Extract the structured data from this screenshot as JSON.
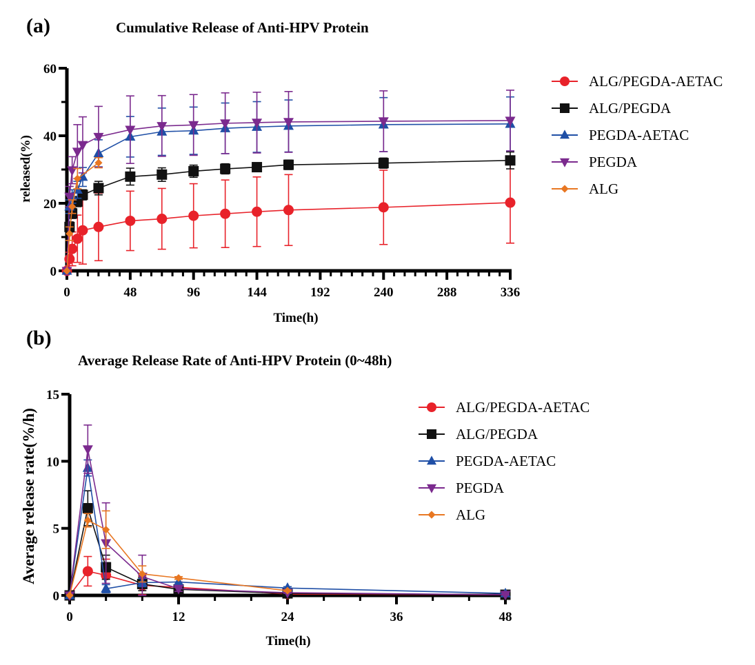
{
  "chart_data": [
    {
      "panel": "(a)",
      "type": "line",
      "title": "Cumulative Release of Anti-HPV Protein",
      "xlabel": "Time(h)",
      "ylabel": "released(%)",
      "xlim": [
        0,
        336
      ],
      "ylim": [
        0,
        60
      ],
      "xticks": [
        0,
        48,
        96,
        144,
        192,
        240,
        288,
        336
      ],
      "yticks": [
        0,
        20,
        40,
        60
      ],
      "x_minor_step": 8,
      "y_minor_step": 10,
      "grid": false,
      "legend_position": "right",
      "series": [
        {
          "name": "ALG/PEGDA-AETAC",
          "color": "#e8222a",
          "marker": "circle",
          "x": [
            0,
            2,
            4,
            8,
            12,
            24,
            48,
            72,
            96,
            120,
            144,
            168,
            240,
            336
          ],
          "values": [
            0,
            3.5,
            6.5,
            9.5,
            12,
            13,
            14.8,
            15.4,
            16.3,
            16.9,
            17.5,
            18,
            18.8,
            20.2
          ],
          "error": [
            0,
            2,
            5,
            7,
            10,
            10,
            8.8,
            9,
            9.5,
            10,
            10.3,
            10.5,
            11,
            12
          ]
        },
        {
          "name": "ALG/PEGDA",
          "color": "#111111",
          "marker": "square",
          "x": [
            2,
            4,
            8,
            12,
            24,
            48,
            72,
            96,
            120,
            144,
            168,
            240,
            336
          ],
          "values": [
            13,
            17,
            20.5,
            22.5,
            24.5,
            27.9,
            28.5,
            29.5,
            30.2,
            30.7,
            31.4,
            31.9,
            32.7
          ],
          "error": [
            1.5,
            1.5,
            1.5,
            1.5,
            2,
            2.5,
            2,
            1.8,
            1.5,
            1.3,
            1.4,
            1.5,
            2.5
          ]
        },
        {
          "name": "PEGDA-AETAC",
          "color": "#1f4fa6",
          "marker": "triangle-up",
          "x": [
            0,
            2,
            4,
            8,
            12,
            24,
            48,
            72,
            96,
            120,
            144,
            168,
            240,
            336
          ],
          "values": [
            0,
            19,
            22,
            24,
            27.8,
            34.8,
            39.7,
            41.2,
            41.5,
            42.2,
            42.6,
            42.9,
            43.3,
            43.5
          ],
          "error": [
            0,
            2,
            2,
            2.5,
            2.8,
            4,
            6,
            7,
            7,
            7.5,
            7.5,
            7.7,
            8,
            8
          ]
        },
        {
          "name": "PEGDA",
          "color": "#7b2a8e",
          "marker": "triangle-down",
          "x": [
            0,
            2,
            4,
            8,
            12,
            24,
            48,
            72,
            96,
            120,
            144,
            168,
            240,
            336
          ],
          "values": [
            0,
            22,
            29.8,
            35.3,
            37.3,
            39.7,
            41.8,
            42.9,
            43.2,
            43.7,
            43.9,
            44.1,
            44.3,
            44.5
          ],
          "error": [
            0,
            3,
            4,
            8,
            8.3,
            9,
            10,
            9,
            9,
            9,
            9,
            9,
            9,
            9
          ]
        },
        {
          "name": "ALG",
          "color": "#e87722",
          "marker": "diamond",
          "x": [
            0,
            2,
            4,
            8,
            24
          ],
          "values": [
            0,
            11,
            19,
            27.3,
            32
          ],
          "error": [
            0,
            2,
            2,
            3,
            1.5
          ]
        }
      ]
    },
    {
      "panel": "(b)",
      "type": "line",
      "title": "Average Release Rate of Anti-HPV Protein (0~48h)",
      "xlabel": "Time(h)",
      "ylabel": "Average release rate(%/h)",
      "xlim": [
        0,
        48
      ],
      "ylim": [
        0,
        15
      ],
      "xticks": [
        0,
        12,
        24,
        36,
        48
      ],
      "yticks": [
        0,
        5,
        10,
        15
      ],
      "x_minor_step": 4,
      "grid": false,
      "legend_position": "right",
      "series": [
        {
          "name": "ALG/PEGDA-AETAC",
          "color": "#e8222a",
          "marker": "circle",
          "x": [
            0,
            2,
            4,
            8,
            12,
            24,
            48
          ],
          "values": [
            0,
            1.8,
            1.5,
            0.75,
            0.6,
            0.1,
            0.05
          ],
          "error": [
            0,
            1.1,
            1.2,
            0.7,
            0.4,
            0.05,
            0.02
          ]
        },
        {
          "name": "ALG/PEGDA",
          "color": "#111111",
          "marker": "square",
          "x": [
            0,
            2,
            4,
            8,
            12,
            24,
            48
          ],
          "values": [
            0,
            6.5,
            2.1,
            0.85,
            0.45,
            0.15,
            0.05
          ],
          "error": [
            0,
            1.3,
            0.9,
            0.5,
            0.2,
            0.05,
            0.02
          ]
        },
        {
          "name": "PEGDA-AETAC",
          "color": "#1f4fa6",
          "marker": "triangle-up",
          "x": [
            0,
            2,
            4,
            8,
            12,
            24,
            48
          ],
          "values": [
            0,
            9.5,
            0.5,
            0.95,
            1.0,
            0.55,
            0.15
          ],
          "error": [
            0,
            0.6,
            0.3,
            0.3,
            0.2,
            0.1,
            0.03
          ]
        },
        {
          "name": "PEGDA",
          "color": "#7b2a8e",
          "marker": "triangle-down",
          "x": [
            0,
            2,
            4,
            8,
            12,
            24,
            48
          ],
          "values": [
            0,
            10.9,
            3.9,
            1.4,
            0.5,
            0.2,
            0.05
          ],
          "error": [
            0,
            1.8,
            3.0,
            1.6,
            0.2,
            0.05,
            0.02
          ]
        },
        {
          "name": "ALG",
          "color": "#e87722",
          "marker": "diamond",
          "x": [
            0,
            2,
            4,
            8,
            12,
            24
          ],
          "values": [
            0,
            5.6,
            4.9,
            1.6,
            1.3,
            0.35
          ],
          "error": [
            0,
            0.5,
            1.4,
            0.6,
            0.1,
            0.05
          ]
        }
      ]
    }
  ]
}
